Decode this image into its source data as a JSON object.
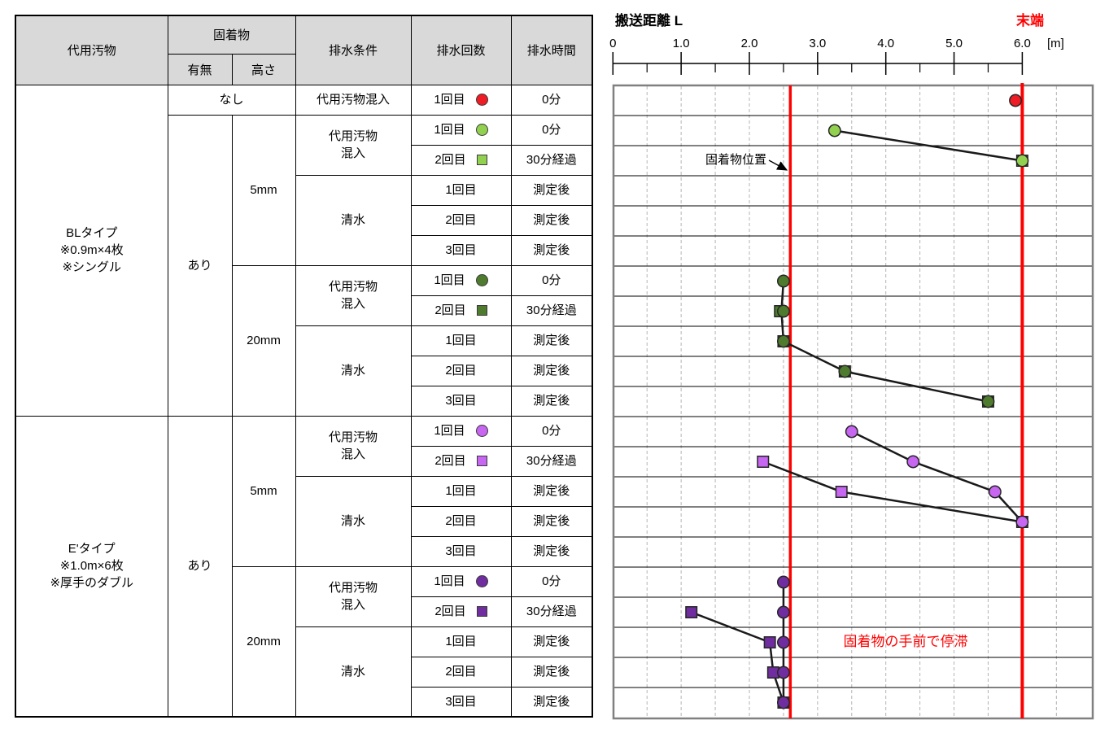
{
  "colors": {
    "red": "#ee1c24",
    "lightgreen": "#92d050",
    "darkgreen": "#4e7b2e",
    "lightpurple": "#c766f0",
    "darkpurple": "#6f2da0",
    "line_red": "#ff0000",
    "grid": "#b3b3b3",
    "plot_border": "#808080",
    "header_bg": "#d9d9d9"
  },
  "table": {
    "header": {
      "daiyo": "代用汚物",
      "kochaku": "固着物",
      "umu": "有無",
      "takasa": "高さ",
      "jouken": "排水条件",
      "kaisu": "排水回数",
      "jikan": "排水時間"
    },
    "rows": [
      [
        {
          "t": "BLタイプ\n※0.9m×4枚\n※シングル",
          "rs": 11
        },
        {
          "t": "なし",
          "cs": 2
        },
        {
          "t": "代用汚物混入"
        },
        {
          "t": "1回目",
          "marker": {
            "shape": "circle",
            "color": "red"
          }
        },
        {
          "t": "0分"
        }
      ],
      [
        {
          "t": "あり",
          "rs": 10
        },
        {
          "t": "5mm",
          "rs": 5
        },
        {
          "t": "代用汚物\n混入",
          "rs": 2
        },
        {
          "t": "1回目",
          "marker": {
            "shape": "circle",
            "color": "lightgreen"
          }
        },
        {
          "t": "0分"
        }
      ],
      [
        {
          "t": "2回目",
          "marker": {
            "shape": "square",
            "color": "lightgreen"
          }
        },
        {
          "t": "30分経過"
        }
      ],
      [
        {
          "t": "清水",
          "rs": 3
        },
        {
          "t": "1回目"
        },
        {
          "t": "測定後"
        }
      ],
      [
        {
          "t": "2回目"
        },
        {
          "t": "測定後"
        }
      ],
      [
        {
          "t": "3回目"
        },
        {
          "t": "測定後"
        }
      ],
      [
        {
          "t": "20mm",
          "rs": 5
        },
        {
          "t": "代用汚物\n混入",
          "rs": 2
        },
        {
          "t": "1回目",
          "marker": {
            "shape": "circle",
            "color": "darkgreen"
          }
        },
        {
          "t": "0分"
        }
      ],
      [
        {
          "t": "2回目",
          "marker": {
            "shape": "square",
            "color": "darkgreen"
          }
        },
        {
          "t": "30分経過"
        }
      ],
      [
        {
          "t": "清水",
          "rs": 3
        },
        {
          "t": "1回目"
        },
        {
          "t": "測定後"
        }
      ],
      [
        {
          "t": "2回目"
        },
        {
          "t": "測定後"
        }
      ],
      [
        {
          "t": "3回目"
        },
        {
          "t": "測定後"
        }
      ],
      [
        {
          "t": "E'タイプ\n※1.0m×6枚\n※厚手のダブル",
          "rs": 10
        },
        {
          "t": "あり",
          "rs": 10
        },
        {
          "t": "5mm",
          "rs": 5
        },
        {
          "t": "代用汚物\n混入",
          "rs": 2
        },
        {
          "t": "1回目",
          "marker": {
            "shape": "circle",
            "color": "lightpurple"
          }
        },
        {
          "t": "0分"
        }
      ],
      [
        {
          "t": "2回目",
          "marker": {
            "shape": "square",
            "color": "lightpurple"
          }
        },
        {
          "t": "30分経過"
        }
      ],
      [
        {
          "t": "清水",
          "rs": 3
        },
        {
          "t": "1回目"
        },
        {
          "t": "測定後"
        }
      ],
      [
        {
          "t": "2回目"
        },
        {
          "t": "測定後"
        }
      ],
      [
        {
          "t": "3回目"
        },
        {
          "t": "測定後"
        }
      ],
      [
        {
          "t": "20mm",
          "rs": 5
        },
        {
          "t": "代用汚物\n混入",
          "rs": 2
        },
        {
          "t": "1回目",
          "marker": {
            "shape": "circle",
            "color": "darkpurple"
          }
        },
        {
          "t": "0分"
        }
      ],
      [
        {
          "t": "2回目",
          "marker": {
            "shape": "square",
            "color": "darkpurple"
          }
        },
        {
          "t": "30分経過"
        }
      ],
      [
        {
          "t": "清水",
          "rs": 3
        },
        {
          "t": "1回目"
        },
        {
          "t": "測定後"
        }
      ],
      [
        {
          "t": "2回目"
        },
        {
          "t": "測定後"
        }
      ],
      [
        {
          "t": "3回目"
        },
        {
          "t": "測定後"
        }
      ]
    ]
  },
  "chart_data": {
    "type": "scatter",
    "axis_title": "搬送距離 L",
    "end_label": "末端",
    "unit_label": "[m]",
    "tick_labels": [
      "0",
      "1.0",
      "2.0",
      "3.0",
      "4.0",
      "5.0",
      "6.0"
    ],
    "tick_values": [
      0,
      1,
      2,
      3,
      4,
      5,
      6
    ],
    "minor_tick_step": 0.5,
    "gridline_step": 0.5,
    "xlim_m": [
      0,
      7.0
    ],
    "row_count": 21,
    "fixture_line_x_m": 2.6,
    "fixture_label": "固着物位置",
    "end_line_x_m": 6.0,
    "stall_label": "固着物の手前で停滞",
    "groups": [
      {
        "name": "BL-none",
        "color": "red",
        "circles": [
          [
            1,
            5.9
          ]
        ],
        "squares": [],
        "lines": []
      },
      {
        "name": "BL-5mm",
        "color": "lightgreen",
        "circles": [
          [
            2,
            3.25
          ],
          [
            3,
            6.0
          ]
        ],
        "squares": [
          [
            3,
            6.0
          ]
        ],
        "lines": [
          [
            [
              2,
              3.25
            ],
            [
              3,
              6.0
            ]
          ]
        ]
      },
      {
        "name": "BL-20mm",
        "color": "darkgreen",
        "circles": [
          [
            7,
            2.5
          ],
          [
            8,
            2.5
          ],
          [
            9,
            2.5
          ],
          [
            10,
            3.4
          ],
          [
            11,
            5.5
          ]
        ],
        "squares": [
          [
            8,
            2.45
          ],
          [
            9,
            2.5
          ],
          [
            10,
            3.4
          ],
          [
            11,
            5.5
          ]
        ],
        "lines": [
          [
            [
              7,
              2.5
            ],
            [
              8,
              2.47
            ],
            [
              9,
              2.5
            ],
            [
              10,
              3.4
            ],
            [
              11,
              5.5
            ]
          ]
        ]
      },
      {
        "name": "E-5mm",
        "color": "lightpurple",
        "circles": [
          [
            12,
            3.5
          ],
          [
            13,
            4.4
          ],
          [
            14,
            5.6
          ],
          [
            15,
            6.0
          ]
        ],
        "squares": [
          [
            13,
            2.2
          ],
          [
            14,
            3.35
          ],
          [
            15,
            6.0
          ]
        ],
        "lines": [
          [
            [
              12,
              3.5
            ],
            [
              13,
              4.4
            ],
            [
              14,
              5.6
            ],
            [
              15,
              6.0
            ]
          ],
          [
            [
              13,
              2.2
            ],
            [
              14,
              3.35
            ],
            [
              15,
              6.0
            ]
          ]
        ]
      },
      {
        "name": "E-20mm",
        "color": "darkpurple",
        "circles": [
          [
            17,
            2.5
          ],
          [
            18,
            2.5
          ],
          [
            19,
            2.5
          ],
          [
            20,
            2.5
          ],
          [
            21,
            2.5
          ]
        ],
        "squares": [
          [
            18,
            1.15
          ],
          [
            19,
            2.3
          ],
          [
            20,
            2.35
          ],
          [
            21,
            2.5
          ]
        ],
        "lines": [
          [
            [
              17,
              2.5
            ],
            [
              18,
              2.5
            ],
            [
              19,
              2.5
            ],
            [
              20,
              2.5
            ],
            [
              21,
              2.5
            ]
          ],
          [
            [
              18,
              1.15
            ],
            [
              19,
              2.3
            ],
            [
              20,
              2.35
            ],
            [
              21,
              2.5
            ]
          ]
        ]
      }
    ]
  }
}
